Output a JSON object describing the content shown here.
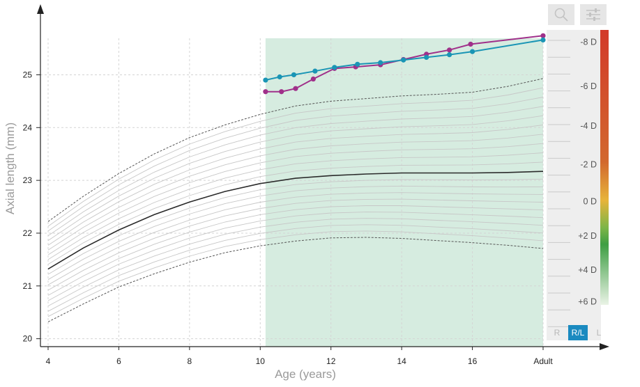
{
  "toolbar": {
    "search_icon": "magnifier-icon",
    "settings_icon": "sliders-icon"
  },
  "eye_toggle": [
    {
      "label": "R",
      "active": false
    },
    {
      "label": "R/L",
      "active": true
    },
    {
      "label": "L",
      "active": false
    }
  ],
  "colors": {
    "right_eye": "#a0308a",
    "left_eye": "#1a95b5",
    "highlight": "#d6ece0",
    "active_toggle": "#1a8ac0"
  },
  "diopter_scale": {
    "labels": [
      "-8 D",
      "-6 D",
      "-4 D",
      "-2 D",
      "0 D",
      "+2 D",
      "+4 D",
      "+6 D"
    ],
    "label_values": [
      25.62,
      24.78,
      24.03,
      23.3,
      22.6,
      21.95,
      21.3,
      20.7
    ]
  },
  "chart_data": {
    "type": "line",
    "xlabel": "Age (years)",
    "ylabel": "Axial length (mm)",
    "x_tick_labels": [
      "4",
      "6",
      "8",
      "10",
      "12",
      "14",
      "16",
      "Adult"
    ],
    "x_tick_values": [
      4,
      6,
      8,
      10,
      12,
      14,
      16,
      18
    ],
    "y_ticks": [
      20,
      21,
      22,
      23,
      24,
      25
    ],
    "xlim": [
      4,
      18
    ],
    "ylim": [
      19.85,
      25.85
    ],
    "grid": true,
    "highlight_range": [
      10.15,
      18
    ],
    "centile_x": [
      4,
      5,
      6,
      7,
      8,
      9,
      10,
      11,
      12,
      13,
      14,
      15,
      16,
      17,
      18
    ],
    "centile_lower": [
      20.32,
      20.66,
      20.98,
      21.23,
      21.45,
      21.63,
      21.76,
      21.85,
      21.91,
      21.92,
      21.9,
      21.86,
      21.82,
      21.77,
      21.71
    ],
    "centile_median": [
      21.32,
      21.72,
      22.06,
      22.35,
      22.59,
      22.79,
      22.94,
      23.04,
      23.09,
      23.12,
      23.14,
      23.14,
      23.14,
      23.15,
      23.17
    ],
    "centile_upper": [
      22.22,
      22.7,
      23.13,
      23.5,
      23.81,
      24.05,
      24.25,
      24.41,
      24.5,
      24.55,
      24.6,
      24.63,
      24.67,
      24.78,
      24.93
    ],
    "series": [
      {
        "name": "",
        "x": [
          10.15,
          10.6,
          11.0,
          11.5,
          12.1,
          12.7,
          13.4,
          14.05,
          14.7,
          15.35,
          15.95,
          18.0
        ],
        "values": [
          24.68,
          24.68,
          24.74,
          24.92,
          25.12,
          25.15,
          25.19,
          25.29,
          25.39,
          25.47,
          25.58,
          25.74
        ]
      },
      {
        "name": "",
        "x": [
          10.15,
          10.55,
          10.95,
          11.55,
          12.1,
          12.75,
          13.4,
          14.05,
          14.7,
          15.35,
          16.0,
          18.0
        ],
        "values": [
          24.9,
          24.96,
          25.0,
          25.07,
          25.14,
          25.2,
          25.23,
          25.28,
          25.33,
          25.38,
          25.44,
          25.66
        ]
      }
    ]
  }
}
